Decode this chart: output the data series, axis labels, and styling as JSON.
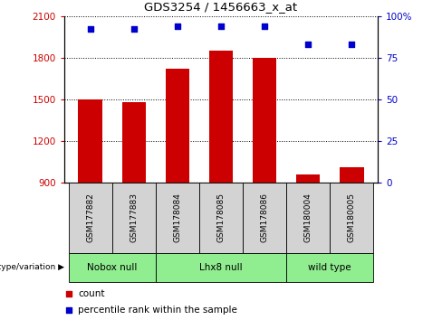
{
  "title": "GDS3254 / 1456663_x_at",
  "samples": [
    "GSM177882",
    "GSM177883",
    "GSM178084",
    "GSM178085",
    "GSM178086",
    "GSM180004",
    "GSM180005"
  ],
  "bar_values": [
    1500,
    1480,
    1720,
    1850,
    1800,
    960,
    1010
  ],
  "percentile_values": [
    92,
    92,
    94,
    94,
    94,
    83,
    83
  ],
  "bar_color": "#cc0000",
  "dot_color": "#0000cc",
  "ylim_left": [
    900,
    2100
  ],
  "ylim_right": [
    0,
    100
  ],
  "yticks_left": [
    900,
    1200,
    1500,
    1800,
    2100
  ],
  "yticks_right": [
    0,
    25,
    50,
    75,
    100
  ],
  "group_boundaries": [
    [
      0,
      2,
      "Nobox null"
    ],
    [
      2,
      5,
      "Lhx8 null"
    ],
    [
      5,
      7,
      "wild type"
    ]
  ],
  "group_color": "#90ee90",
  "sample_box_color": "#d3d3d3",
  "tick_label_color_left": "#cc0000",
  "tick_label_color_right": "#0000cc"
}
